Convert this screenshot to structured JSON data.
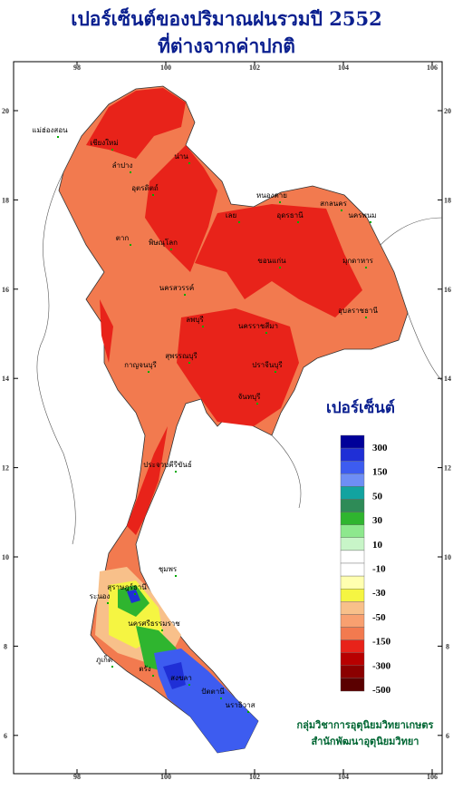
{
  "title": [
    "เปอร์เซ็นต์ของปริมาณฝนรวมปี 2552",
    "ที่ต่างจากค่าปกติ"
  ],
  "longitude_ticks": [
    98,
    100,
    102,
    104,
    106
  ],
  "latitude_ticks": [
    20,
    18,
    16,
    14,
    12,
    10,
    8,
    6
  ],
  "legend": {
    "title": "เปอร์เซ็นต์",
    "colors": [
      "#000099",
      "#1f2fd6",
      "#3d5cf0",
      "#6e8ef5",
      "#12a3a0",
      "#2e8b57",
      "#2fb52f",
      "#8de88d",
      "#c8f5c8",
      "#ffffff",
      "#ffffff",
      "#ffffb0",
      "#f5f542",
      "#f8c08a",
      "#f8a070",
      "#f27a4f",
      "#e8231a",
      "#b80000",
      "#8b0000",
      "#5a0000"
    ],
    "labels": [
      "300",
      "150",
      "50",
      "30",
      "10",
      "-10",
      "-30",
      "-50",
      "-150",
      "-300",
      "-500"
    ]
  },
  "credits": [
    "กลุ่มวิชาการอุตุนิยมวิทยาเกษตร",
    "สำนักพัฒนาอุตุนิยมวิทยา"
  ],
  "places": [
    "แม่ฮ่องสอน",
    "เชียงใหม่",
    "ลำปาง",
    "น่าน",
    "อุตรดิตถ์",
    "ตาก",
    "พิษณุโลก",
    "เลย",
    "หนองคาย",
    "อุดรธานี",
    "สกลนคร",
    "นครพนม",
    "ขอนแก่น",
    "มุกดาหาร",
    "นครสวรรค์",
    "นครราชสีมา",
    "อุบลราชธานี",
    "ลพบุรี",
    "กาญจนบุรี",
    "สุพรรณบุรี",
    "ปราจีนบุรี",
    "จันทบุรี",
    "ประจวบคีรีขันธ์",
    "ชุมพร",
    "ระนอง",
    "สุราษฎร์ธานี",
    "นครศรีธรรมราช",
    "ภูเก็ต",
    "ตรัง",
    "สงขลา",
    "ปัตตานี",
    "นราธิวาส"
  ]
}
